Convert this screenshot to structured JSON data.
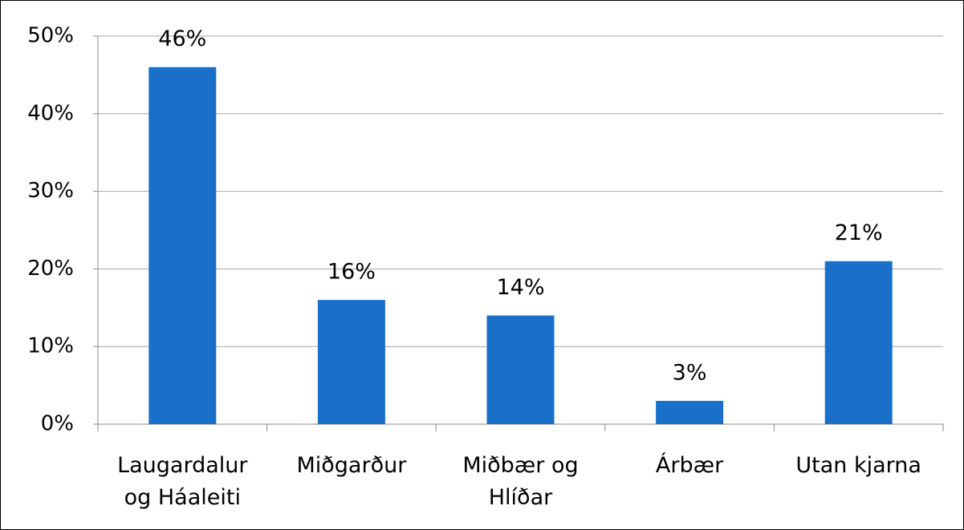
{
  "chart_data": {
    "type": "bar",
    "categories": [
      "Laugardalur og Háaleiti",
      "Miðgarður",
      "Miðbær og Hlíðar",
      "Árbær",
      "Utan kjarna"
    ],
    "values": [
      46,
      16,
      14,
      3,
      21
    ],
    "value_labels": [
      "46%",
      "16%",
      "14%",
      "3%",
      "21%"
    ],
    "color": "#1a70c8",
    "ylim": [
      0,
      50
    ],
    "yticks": [
      {
        "value": 0,
        "label": "0%"
      },
      {
        "value": 10,
        "label": "10%"
      },
      {
        "value": 20,
        "label": "20%"
      },
      {
        "value": 30,
        "label": "30%"
      },
      {
        "value": 40,
        "label": "40%"
      },
      {
        "value": 50,
        "label": "50%"
      }
    ],
    "grid": true
  }
}
